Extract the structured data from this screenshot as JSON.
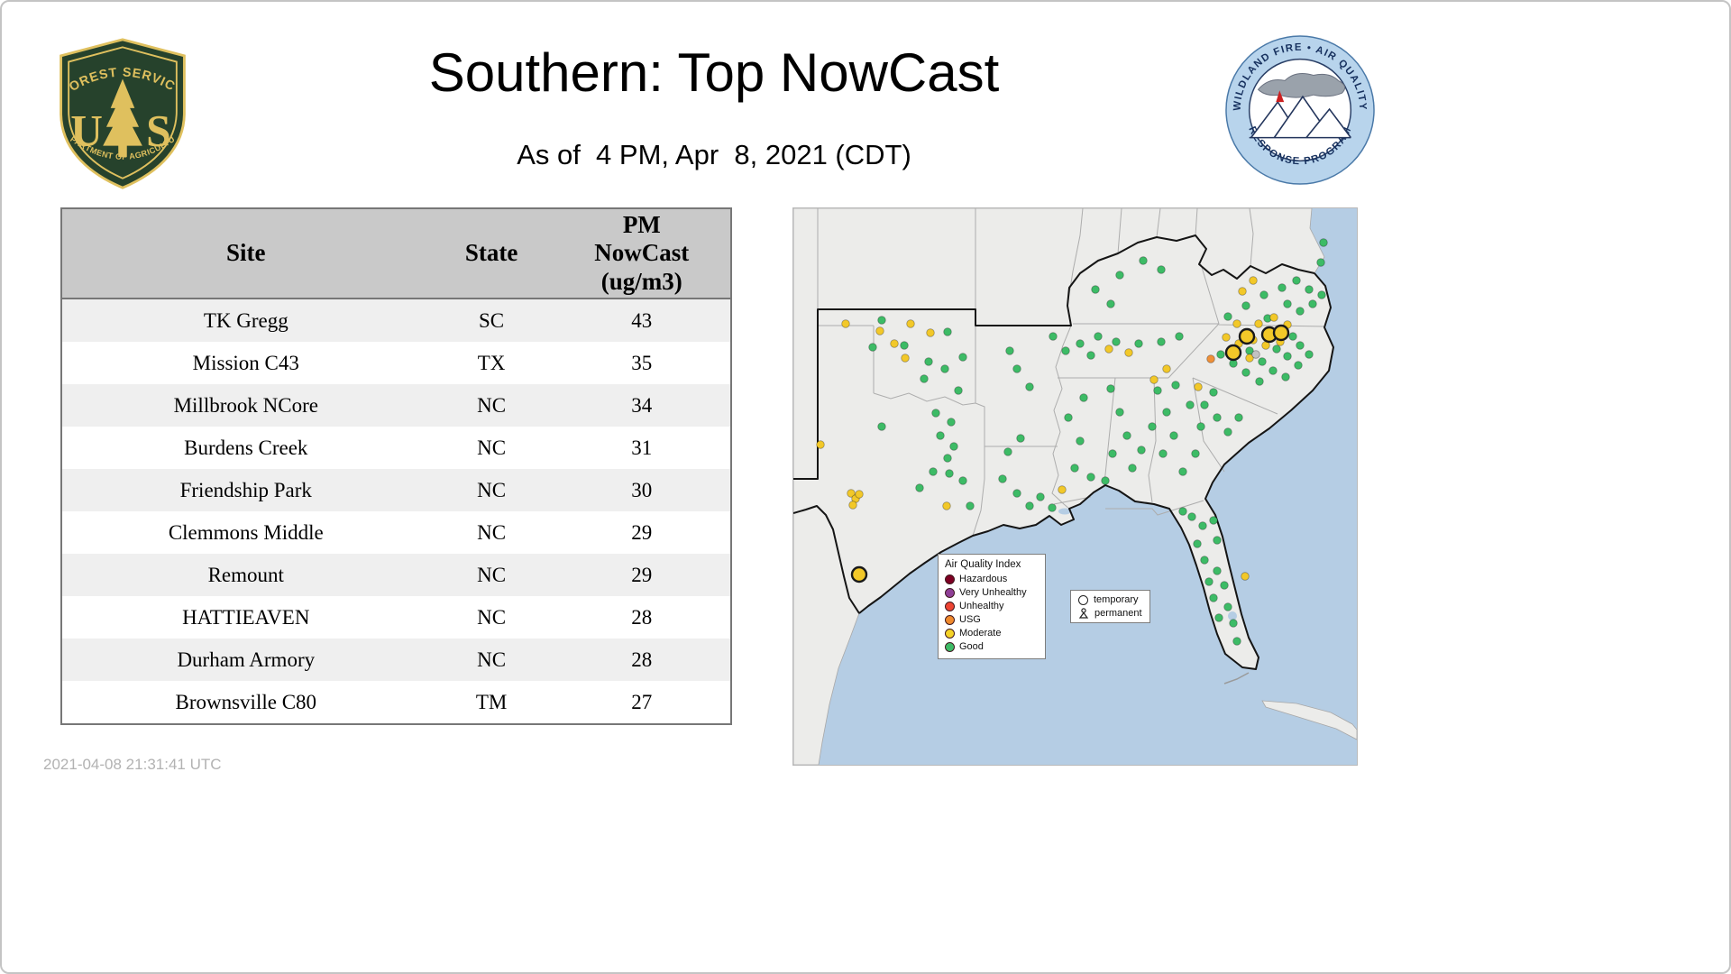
{
  "header": {
    "title": "Southern: Top NowCast",
    "subtitle": "As of  4 PM, Apr  8, 2021 (CDT)",
    "fs_logo": {
      "arc_text": "FOREST SERVICE",
      "letter_u": "U",
      "letter_s": "S",
      "banner_text": "DEPARTMENT OF AGRICULTURE",
      "shield_color": "#26422c",
      "gold_color": "#dfc05e"
    },
    "aq_logo": {
      "top_arc": "WILDLAND FIRE • AIR QUALITY",
      "bottom_arc": "RESPONSE PROGRAM"
    }
  },
  "table": {
    "columns": [
      "Site",
      "State",
      "PM\nNowCast\n(ug/m3)"
    ],
    "rows": [
      [
        "TK Gregg",
        "SC",
        "43"
      ],
      [
        "Mission C43",
        "TX",
        "35"
      ],
      [
        "Millbrook NCore",
        "NC",
        "34"
      ],
      [
        "Burdens Creek",
        "NC",
        "31"
      ],
      [
        "Friendship Park",
        "NC",
        "30"
      ],
      [
        "Clemmons Middle",
        "NC",
        "29"
      ],
      [
        "Remount",
        "NC",
        "29"
      ],
      [
        "HATTIEAVEN",
        "NC",
        "28"
      ],
      [
        "Durham Armory",
        "NC",
        "28"
      ],
      [
        "Brownsville C80",
        "TM",
        "27"
      ]
    ]
  },
  "footer": {
    "timestamp": "2021-04-08 21:31:41 UTC"
  },
  "map": {
    "legend": {
      "title": "Air Quality Index",
      "items": [
        {
          "label": "Hazardous",
          "color": "#7e0023"
        },
        {
          "label": "Very Unhealthy",
          "color": "#8f3f97"
        },
        {
          "label": "Unhealthy",
          "color": "#ed4433"
        },
        {
          "label": "USG",
          "color": "#f08a2d"
        },
        {
          "label": "Moderate",
          "color": "#f5d327"
        },
        {
          "label": "Good",
          "color": "#3dbb66"
        }
      ]
    },
    "site_type_legend": {
      "temporary_label": "temporary",
      "permanent_label": "permanent"
    },
    "colors": {
      "g": "#3dbb66",
      "m": "#f2c829",
      "u": "#ef9038",
      "x": "#c2c2c2"
    },
    "dots": [
      [
        98,
        124,
        "g"
      ],
      [
        171,
        137,
        "g"
      ],
      [
        123,
        152,
        "g"
      ],
      [
        88,
        154,
        "g"
      ],
      [
        150,
        170,
        "g"
      ],
      [
        188,
        165,
        "g"
      ],
      [
        168,
        178,
        "g"
      ],
      [
        145,
        189,
        "g"
      ],
      [
        183,
        202,
        "g"
      ],
      [
        158,
        227,
        "g"
      ],
      [
        175,
        237,
        "g"
      ],
      [
        98,
        242,
        "g"
      ],
      [
        163,
        252,
        "g"
      ],
      [
        178,
        264,
        "g"
      ],
      [
        171,
        277,
        "g"
      ],
      [
        155,
        292,
        "g"
      ],
      [
        173,
        294,
        "g"
      ],
      [
        188,
        302,
        "g"
      ],
      [
        196,
        330,
        "g"
      ],
      [
        140,
        310,
        "g"
      ],
      [
        232,
        300,
        "g"
      ],
      [
        248,
        316,
        "g"
      ],
      [
        262,
        330,
        "g"
      ],
      [
        274,
        320,
        "g"
      ],
      [
        287,
        332,
        "g"
      ],
      [
        252,
        255,
        "g"
      ],
      [
        238,
        270,
        "g"
      ],
      [
        248,
        178,
        "g"
      ],
      [
        262,
        198,
        "g"
      ],
      [
        240,
        158,
        "g"
      ],
      [
        288,
        142,
        "g"
      ],
      [
        305,
        232,
        "g"
      ],
      [
        318,
        258,
        "g"
      ],
      [
        312,
        288,
        "g"
      ],
      [
        330,
        298,
        "g"
      ],
      [
        322,
        210,
        "g"
      ],
      [
        318,
        150,
        "g"
      ],
      [
        338,
        142,
        "g"
      ],
      [
        358,
        148,
        "g"
      ],
      [
        383,
        150,
        "g"
      ],
      [
        408,
        148,
        "g"
      ],
      [
        330,
        163,
        "g"
      ],
      [
        302,
        158,
        "g"
      ],
      [
        428,
        142,
        "g"
      ],
      [
        335,
        90,
        "g"
      ],
      [
        362,
        74,
        "g"
      ],
      [
        388,
        58,
        "g"
      ],
      [
        352,
        106,
        "g"
      ],
      [
        408,
        68,
        "g"
      ],
      [
        352,
        200,
        "g"
      ],
      [
        362,
        226,
        "g"
      ],
      [
        370,
        252,
        "g"
      ],
      [
        354,
        272,
        "g"
      ],
      [
        376,
        288,
        "g"
      ],
      [
        346,
        302,
        "g"
      ],
      [
        386,
        268,
        "g"
      ],
      [
        404,
        202,
        "g"
      ],
      [
        414,
        226,
        "g"
      ],
      [
        422,
        252,
        "g"
      ],
      [
        410,
        272,
        "g"
      ],
      [
        432,
        292,
        "g"
      ],
      [
        446,
        272,
        "g"
      ],
      [
        424,
        196,
        "g"
      ],
      [
        440,
        218,
        "g"
      ],
      [
        452,
        242,
        "g"
      ],
      [
        398,
        242,
        "g"
      ],
      [
        442,
        342,
        "g"
      ],
      [
        454,
        352,
        "g"
      ],
      [
        466,
        346,
        "g"
      ],
      [
        432,
        336,
        "g"
      ],
      [
        470,
        368,
        "g"
      ],
      [
        456,
        390,
        "g"
      ],
      [
        470,
        402,
        "g"
      ],
      [
        478,
        418,
        "g"
      ],
      [
        466,
        432,
        "g"
      ],
      [
        482,
        442,
        "g"
      ],
      [
        472,
        454,
        "g"
      ],
      [
        488,
        460,
        "g"
      ],
      [
        492,
        480,
        "g"
      ],
      [
        461,
        414,
        "g"
      ],
      [
        448,
        372,
        "g"
      ],
      [
        456,
        218,
        "g"
      ],
      [
        470,
        232,
        "g"
      ],
      [
        482,
        248,
        "g"
      ],
      [
        494,
        232,
        "g"
      ],
      [
        466,
        204,
        "g"
      ],
      [
        474,
        162,
        "g"
      ],
      [
        488,
        172,
        "g"
      ],
      [
        506,
        158,
        "g"
      ],
      [
        520,
        170,
        "g"
      ],
      [
        536,
        156,
        "g"
      ],
      [
        548,
        164,
        "g"
      ],
      [
        562,
        152,
        "g"
      ],
      [
        502,
        182,
        "g"
      ],
      [
        517,
        192,
        "g"
      ],
      [
        532,
        180,
        "g"
      ],
      [
        546,
        187,
        "g"
      ],
      [
        560,
        174,
        "g"
      ],
      [
        572,
        162,
        "g"
      ],
      [
        554,
        142,
        "g"
      ],
      [
        482,
        120,
        "g"
      ],
      [
        502,
        108,
        "g"
      ],
      [
        522,
        96,
        "g"
      ],
      [
        542,
        88,
        "g"
      ],
      [
        558,
        80,
        "g"
      ],
      [
        572,
        90,
        "g"
      ],
      [
        548,
        106,
        "g"
      ],
      [
        562,
        114,
        "g"
      ],
      [
        576,
        106,
        "g"
      ],
      [
        586,
        96,
        "g"
      ],
      [
        585,
        60,
        "g"
      ],
      [
        526,
        122,
        "g"
      ],
      [
        588,
        38,
        "g"
      ],
      [
        58,
        128,
        "m"
      ],
      [
        96,
        136,
        "m"
      ],
      [
        130,
        128,
        "m"
      ],
      [
        152,
        138,
        "m"
      ],
      [
        112,
        150,
        "m"
      ],
      [
        124,
        166,
        "m"
      ],
      [
        30,
        262,
        "m"
      ],
      [
        64,
        316,
        "m"
      ],
      [
        69,
        322,
        "m"
      ],
      [
        73,
        317,
        "m"
      ],
      [
        66,
        329,
        "m"
      ],
      [
        170,
        330,
        "m"
      ],
      [
        298,
        312,
        "m"
      ],
      [
        350,
        156,
        "m"
      ],
      [
        372,
        160,
        "m"
      ],
      [
        414,
        178,
        "m"
      ],
      [
        400,
        190,
        "m"
      ],
      [
        449,
        198,
        "m"
      ],
      [
        494,
        150,
        "m"
      ],
      [
        510,
        146,
        "m"
      ],
      [
        524,
        152,
        "m"
      ],
      [
        540,
        148,
        "m"
      ],
      [
        492,
        128,
        "m"
      ],
      [
        516,
        128,
        "m"
      ],
      [
        533,
        121,
        "m"
      ],
      [
        548,
        129,
        "m"
      ],
      [
        506,
        166,
        "m"
      ],
      [
        480,
        143,
        "m"
      ],
      [
        510,
        80,
        "m"
      ],
      [
        498,
        92,
        "m"
      ],
      [
        501,
        408,
        "m"
      ],
      [
        463,
        167,
        "u"
      ],
      [
        513,
        162,
        "x"
      ],
      [
        503,
        142,
        "m",
        "T"
      ],
      [
        528,
        140,
        "m",
        "T"
      ],
      [
        541,
        138,
        "m",
        "T"
      ],
      [
        488,
        160,
        "m",
        "T"
      ],
      [
        73,
        406,
        "m",
        "T"
      ]
    ]
  }
}
